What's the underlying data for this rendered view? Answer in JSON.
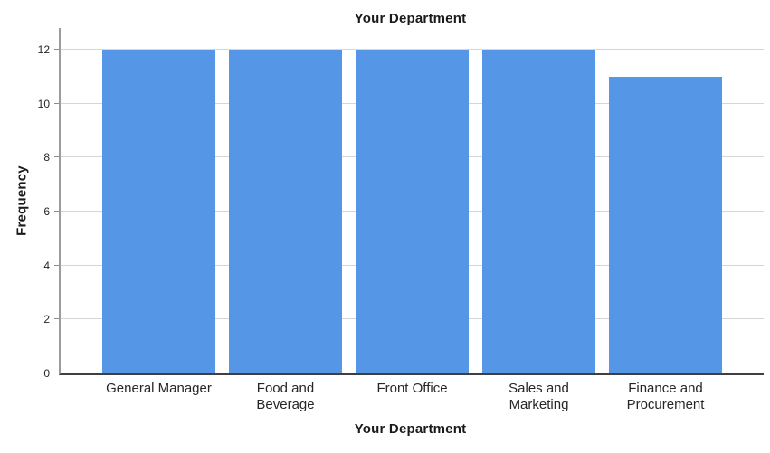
{
  "chart_data": {
    "type": "bar",
    "title": "Your Department",
    "xlabel": "Your Department",
    "ylabel": "Frequency",
    "categories": [
      "General Manager",
      "Food and Beverage",
      "Front Office",
      "Sales and Marketing",
      "Finance and Procurement"
    ],
    "category_label_lines": [
      [
        "General Manager"
      ],
      [
        "Food and",
        "Beverage"
      ],
      [
        "Front Office"
      ],
      [
        "Sales and",
        "Marketing"
      ],
      [
        "Finance and",
        "Procurement"
      ]
    ],
    "values": [
      12,
      12,
      12,
      12,
      11
    ],
    "ylim": [
      0,
      12.8
    ],
    "yticks": [
      0,
      2,
      4,
      6,
      8,
      10,
      12
    ],
    "grid": "horizontal",
    "legend": "none",
    "bar_color": "#5596e6",
    "gridline_color": "#d6d6d6",
    "y_axis_color": "#9b9b9b",
    "x_axis_color": "#3f3f3f",
    "text_color": "#262626"
  }
}
